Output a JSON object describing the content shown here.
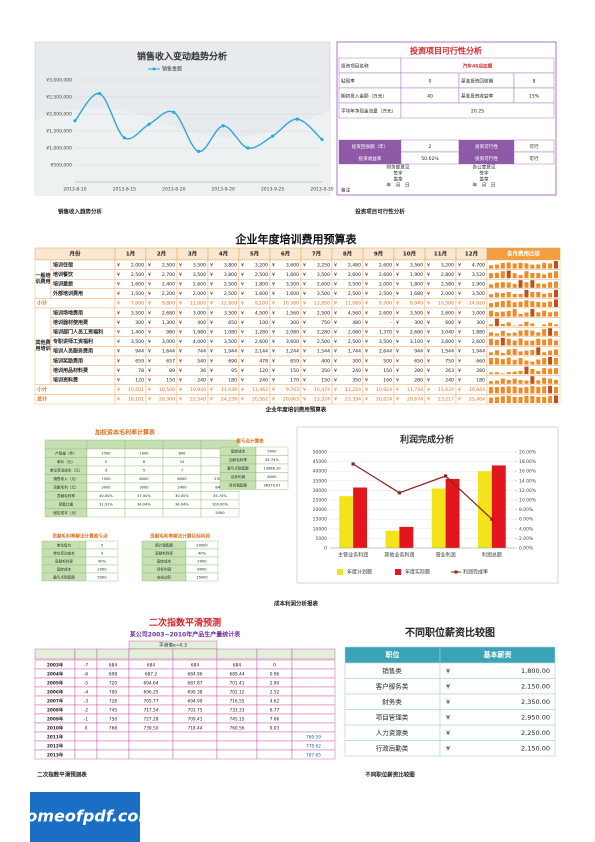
{
  "chart_data": [
    {
      "type": "line",
      "title": "销售收入变动趋势分析",
      "categories": [
        "2013-8-10",
        null,
        "2013-8-15",
        null,
        "2013-8-20",
        null,
        "2013-9-20",
        null,
        "2013-9-25",
        null,
        "2013-9-30"
      ],
      "series": [
        {
          "name": "销售金额",
          "color": "#2aa7d9",
          "values": [
            1800000,
            2600000,
            1300000,
            1700000,
            2050000,
            900000,
            1650000,
            1000000,
            1350000,
            1850000,
            1250000
          ]
        }
      ],
      "ylim": [
        0,
        3000000
      ],
      "yticks": [
        {
          "value": 500000,
          "label": "¥500,000"
        },
        {
          "value": 1000000,
          "label": "¥1,000,000"
        },
        {
          "value": 1500000,
          "label": "¥1,500,000"
        },
        {
          "value": 2000000,
          "label": "¥2,000,000"
        },
        {
          "value": 2500000,
          "label": "¥2,500,000"
        },
        {
          "value": 3000000,
          "label": "¥3,000,000"
        }
      ],
      "grid": true,
      "legend": "top"
    },
    {
      "type": "bar",
      "title": "利润完成分析",
      "categories": [
        "主营业务利润",
        "其他业务利润",
        "营业利润",
        "利润总额"
      ],
      "series": [
        {
          "name": "年度计划额",
          "color": "#f2e31b",
          "values": [
            27000,
            9000,
            31000,
            40000
          ]
        },
        {
          "name": "年度实际额",
          "color": "#e3151d",
          "values": [
            31500,
            11000,
            36000,
            43000
          ]
        },
        {
          "name": "利润完成率",
          "color": "#8b2323",
          "type": "line",
          "axis": "y2",
          "values": [
            17.5,
            11.5,
            15,
            6
          ]
        }
      ],
      "ylim": [
        0,
        50000
      ],
      "yticks": [
        0,
        5000,
        10000,
        15000,
        20000,
        25000,
        30000,
        35000,
        40000,
        45000,
        50000
      ],
      "y2lim": [
        0,
        20
      ],
      "y2ticks": [
        {
          "value": 0,
          "label": "0.00%"
        },
        {
          "value": 2,
          "label": "2.00%"
        },
        {
          "value": 4,
          "label": "4.00%"
        },
        {
          "value": 6,
          "label": "6.00%"
        },
        {
          "value": 8,
          "label": "8.00%"
        },
        {
          "value": 10,
          "label": "10.00%"
        },
        {
          "value": 12,
          "label": "12.00%"
        },
        {
          "value": 14,
          "label": "14.00%"
        },
        {
          "value": 16,
          "label": "16.00%"
        },
        {
          "value": 18,
          "label": "18.00%"
        },
        {
          "value": 20,
          "label": "20.00%"
        }
      ],
      "grid": true,
      "legend": "bottom"
    }
  ],
  "investment": {
    "title": "投资项目可行性分析",
    "rows": [
      [
        "投资项目名称",
        "汽车4S店加盟"
      ],
      [
        "贴现率",
        "0",
        "基准投资回收期",
        "8"
      ],
      [
        "期初投入金额（万元）",
        "40",
        "基准投资收益率",
        "15%"
      ],
      [
        "平均年净现金流量（万元）",
        "20.25"
      ]
    ],
    "results": [
      [
        "投资回收期（年）",
        "2",
        "投资可行性",
        "可行"
      ],
      [
        "投资收益率",
        "50.62%",
        "投资可行性",
        "可行"
      ]
    ],
    "notes": [
      [
        "财务部意见",
        "签字",
        "盖章",
        "年　月　日"
      ],
      [
        "办公室意见",
        "签字",
        "盖章",
        "年　月　日"
      ]
    ],
    "remark": "备注"
  },
  "training": {
    "title": "企业年度培训费用预算表",
    "currency": "¥",
    "header": [
      "月份",
      "1月",
      "2月",
      "3月",
      "4月",
      "5月",
      "6月",
      "7月",
      "8月",
      "9月",
      "10月",
      "11月",
      "12月",
      "各月费用比较"
    ],
    "groups": [
      {
        "name": "一般培训费用",
        "rows": [
          {
            "name": "培训住宿",
            "values": [
              2000,
              2500,
              3500,
              3800,
              3200,
              3600,
              3250,
              2480,
              2600,
              3560,
              3200,
              4700
            ],
            "labels": [
              "2,000",
              "2,500",
              "3,500",
              "3,800",
              "3,200",
              "3,600",
              "3,250",
              "2,480",
              "2,600",
              "3,560",
              "3,200",
              "4,700"
            ]
          },
          {
            "name": "培训餐饮",
            "values": [
              2500,
              2700,
              3500,
              3800,
              2500,
              1600,
              3500,
              2600,
              2600,
              1900,
              2800,
              3520
            ],
            "labels": [
              "2,500",
              "2,700",
              "3,500",
              "3,800",
              "2,500",
              "1,600",
              "3,500",
              "2,600",
              "2,600",
              "1,900",
              "2,800",
              "3,520"
            ]
          },
          {
            "name": "培训差旅",
            "values": [
              1600,
              2400,
              2600,
              2500,
              1800,
              3500,
              2600,
              3500,
              2000,
              1800,
              2580,
              2900
            ],
            "labels": [
              "1,600",
              "2,400",
              "2,600",
              "2,500",
              "1,800",
              "3,500",
              "2,600",
              "3,500",
              "2,000",
              "1,800",
              "2,580",
              "2,900"
            ]
          },
          {
            "name": "外部培训费用",
            "values": [
              1500,
              2200,
              2000,
              2500,
              1600,
              1600,
              3500,
              2500,
              2500,
              1680,
              2000,
              3500
            ],
            "labels": [
              "1,500",
              "2,200",
              "2,000",
              "2,500",
              "1,600",
              "1,600",
              "3,500",
              "2,500",
              "2,500",
              "1,680",
              "2,000",
              "3,500"
            ]
          }
        ],
        "subtotal": {
          "name": "小计",
          "values": [
            7600,
            9800,
            11600,
            12600,
            9100,
            10300,
            12850,
            11080,
            9700,
            8940,
            10580,
            14620
          ],
          "labels": [
            "7,600",
            "9,800",
            "11,600",
            "12,600",
            "9,100",
            "10,300",
            "12,850",
            "11,080",
            "9,700",
            "8,940",
            "10,580",
            "14,620"
          ]
        }
      },
      {
        "name": "其他费用培训",
        "rows": [
          {
            "name": "培训场地费用",
            "values": [
              3500,
              2680,
              3000,
              3500,
              4500,
              1560,
              2500,
              4560,
              2600,
              3500,
              2600,
              3000
            ],
            "labels": [
              "3,500",
              "2,680",
              "3,000",
              "3,500",
              "4,500",
              "1,560",
              "2,500",
              "4,560",
              "2,600",
              "3,500",
              "2,600",
              "3,000"
            ]
          },
          {
            "name": "培训器材使用费",
            "values": [
              300,
              1300,
              400,
              650,
              100,
              300,
              750,
              480,
              0,
              300,
              600,
              300
            ],
            "labels": [
              "300",
              "1,300",
              "400",
              "650",
              "100",
              "300",
              "750",
              "480",
              "-",
              "300",
              "600",
              "300"
            ]
          },
          {
            "name": "培训部门人员工资福利",
            "values": [
              1400,
              980,
              1980,
              1080,
              1280,
              2080,
              2280,
              2080,
              1370,
              2680,
              3040,
              1880
            ],
            "labels": [
              "1,400",
              "980",
              "1,980",
              "1,080",
              "1,280",
              "2,080",
              "2,280",
              "2,080",
              "1,370",
              "2,680",
              "3,040",
              "1,880"
            ]
          },
          {
            "name": "专职讲师工资福利",
            "values": [
              3500,
              3000,
              4000,
              3500,
              2600,
              3600,
              2500,
              2500,
              3500,
              3100,
              3600,
              2600
            ],
            "labels": [
              "3,500",
              "3,000",
              "4,000",
              "3,500",
              "2,600",
              "3,600",
              "2,500",
              "2,500",
              "3,500",
              "3,100",
              "3,600",
              "2,600"
            ]
          },
          {
            "name": "培训人员服务费用",
            "values": [
              944,
              1644,
              744,
              1944,
              2144,
              1244,
              1544,
              1744,
              2644,
              944,
              1544,
              1944
            ],
            "labels": [
              "944",
              "1,644",
              "744",
              "1,944",
              "2,144",
              "1,244",
              "1,544",
              "1,744",
              "2,644",
              "944",
              "1,544",
              "1,944"
            ]
          },
          {
            "name": "培训奖励费用",
            "values": [
              659,
              657,
              540,
              690,
              478,
              659,
              400,
              300,
              500,
              650,
              750,
              660
            ],
            "labels": [
              "659",
              "657",
              "540",
              "690",
              "478",
              "659",
              "400",
              "300",
              "500",
              "650",
              "750",
              "660"
            ]
          },
          {
            "name": "培训用品材料费",
            "values": [
              78,
              89,
              36,
              95,
              120,
              150,
              350,
              240,
              150,
              280,
              263,
              280
            ],
            "labels": [
              "78",
              "89",
              "36",
              "95",
              "120",
              "150",
              "350",
              "240",
              "150",
              "280",
              "263",
              "280"
            ]
          },
          {
            "name": "培训资料费",
            "values": [
              120,
              150,
              240,
              180,
              240,
              170,
              150,
              350,
              160,
              280,
              240,
              180
            ],
            "labels": [
              "120",
              "150",
              "240",
              "180",
              "240",
              "170",
              "150",
              "350",
              "160",
              "280",
              "240",
              "180"
            ]
          }
        ],
        "subtotal": {
          "name": "小计",
          "values": [
            10501,
            10500,
            10940,
            11639,
            11462,
            9763,
            10474,
            12254,
            10924,
            11734,
            12637,
            10844
          ],
          "labels": [
            "10,501",
            "10,500",
            "10,940",
            "11,639",
            "11,462",
            "9,763",
            "10,474",
            "12,254",
            "10,924",
            "11,734",
            "12,637",
            "10,844"
          ]
        }
      }
    ],
    "total": {
      "name": "总计",
      "values": [
        18101,
        20300,
        22540,
        24239,
        20562,
        20063,
        23324,
        23334,
        20624,
        20674,
        23217,
        25464
      ],
      "labels": [
        "18,101",
        "20,300",
        "22,540",
        "24,239",
        "20,562",
        "20,063",
        "23,324",
        "23,334",
        "20,624",
        "20,674",
        "23,217",
        "25,464"
      ]
    }
  },
  "margin": {
    "title": "加权资本毛利率计算表",
    "header": [
      "项目",
      "甲产品",
      "乙产品",
      "丙产品",
      "合计"
    ],
    "rows": [
      [
        "产销量（件）",
        "1500",
        "1000",
        "800",
        null
      ],
      [
        "单价（元）",
        "5",
        "8",
        "10",
        null
      ],
      [
        "单位变动成本（元）",
        "3",
        "5",
        "7",
        null
      ],
      [
        "销售收入（元）",
        "7500",
        "8000",
        "8000",
        "23500"
      ],
      [
        "贡献毛利（元）",
        "3000",
        "3000",
        "2400",
        "8400"
      ],
      [
        "贡献毛利率",
        "40.00%",
        "37.50%",
        "30.00%",
        "35.74%"
      ],
      [
        "销售比重",
        "31.91%",
        "34.04%",
        "34.04%",
        "100.00%"
      ],
      [
        "固定成本（元）",
        null,
        null,
        null,
        "5000"
      ]
    ],
    "side": {
      "title": "盈亏点计算表",
      "rows": [
        [
          "固定成本",
          "5000"
        ],
        [
          "加权毛利率",
          "35.74%"
        ],
        [
          "盈亏点销售额",
          "13988.10"
        ],
        [
          "目标利润",
          "8000"
        ],
        [
          "目标销售额",
          "36370.07"
        ]
      ]
    },
    "bottom": [
      {
        "title": "贡献毛利率解法计算盈亏点",
        "rows": [
          [
            "单位售价",
            "5"
          ],
          [
            "单位变动成本",
            "3"
          ],
          [
            "贡献毛利率",
            "40%"
          ],
          [
            "固定成本",
            "2000"
          ],
          [
            "盈亏点销售额",
            "5000"
          ]
        ]
      },
      {
        "title": "贡献毛利率解法计算目标利润",
        "rows": [
          [
            "预计销售额",
            "20000"
          ],
          [
            "贡献毛利率",
            "40%"
          ],
          [
            "固定成本",
            "2000"
          ],
          [
            "目标利润",
            "6000"
          ],
          [
            "安全边际",
            "15000"
          ]
        ]
      }
    ]
  },
  "smoothing": {
    "title": "二次指数平滑预测",
    "subtitle": "某公司2003~2010年产品生产量统计表",
    "group_header": "平滑值α=0.3",
    "header": [
      "年份",
      "时间t",
      "生产量X(t)",
      "一次平滑值",
      "二次平滑值",
      "a",
      "b",
      "预测值"
    ],
    "rows": [
      [
        "2003年",
        "-7",
        "684",
        "684",
        "684",
        "684",
        "0",
        null
      ],
      [
        "2004年",
        "-6",
        "698",
        "687.2",
        "684.96",
        "689.44",
        "0.96",
        null
      ],
      [
        "2005年",
        "-5",
        "720",
        "694.64",
        "687.87",
        "701.41",
        "2.90",
        null
      ],
      [
        "2006年",
        "-4",
        "700",
        "696.25",
        "690.38",
        "702.12",
        "2.52",
        null
      ],
      [
        "2007年",
        "-3",
        "728",
        "705.77",
        "694.99",
        "716.55",
        "4.62",
        null
      ],
      [
        "2008年",
        "-2",
        "745",
        "717.54",
        "701.75",
        "733.33",
        "6.77",
        null
      ],
      [
        "2009年",
        "-1",
        "750",
        "727.28",
        "709.41",
        "745.15",
        "7.66",
        null
      ],
      [
        "2010年",
        "0",
        "768",
        "739.50",
        "718.44",
        "760.56",
        "9.03",
        null
      ],
      [
        "2011年",
        null,
        null,
        null,
        null,
        null,
        null,
        "769.59"
      ],
      [
        "2012年",
        null,
        null,
        null,
        null,
        null,
        null,
        "778.62"
      ],
      [
        "2013年",
        null,
        null,
        null,
        null,
        null,
        null,
        "787.65"
      ]
    ]
  },
  "salary": {
    "title": "不同职位薪资比较图",
    "header": [
      "职位",
      "基本薪资"
    ],
    "currency": "¥",
    "rows": [
      [
        "销售类",
        "1,800.00"
      ],
      [
        "客户服务类",
        "2,150.00"
      ],
      [
        "财务类",
        "2,350.00"
      ],
      [
        "项目管理类",
        "2,950.00"
      ],
      [
        "人力资源类",
        "2,250.00"
      ],
      [
        "行政后勤类",
        "2,150.00"
      ]
    ]
  },
  "captions": {
    "sales": "销售收入趋势分析",
    "investment": "投资项目可行性分析",
    "training": "企业年度培训费用预算表",
    "profit": "成本利润分析报表",
    "smoothing": "二次指数平滑预测表",
    "salary": "不同职位薪资比较图"
  },
  "logo": "homeofpdf.com"
}
